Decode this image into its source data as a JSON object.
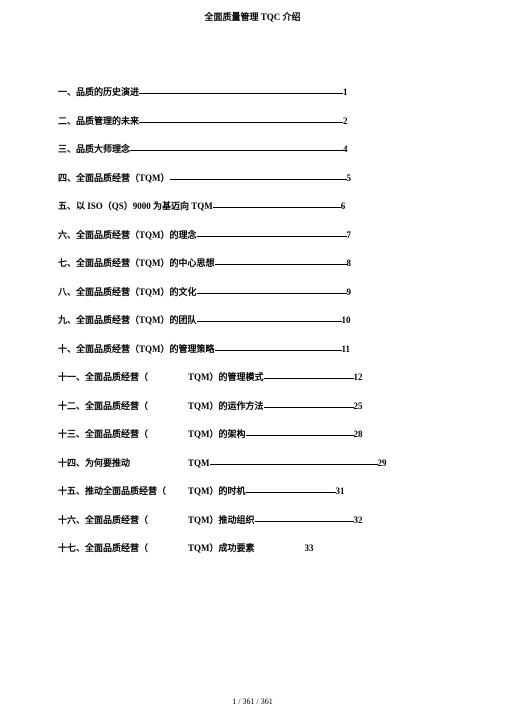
{
  "title": "全面质量管理 TQC 介绍",
  "footer": "1 / 361 / 361",
  "toc": [
    {
      "labelA": "一、品质的历史演进",
      "labelB": "",
      "page": "1",
      "ruleWidth": 204,
      "gapA": 0,
      "gapB": 0,
      "gapC": 0
    },
    {
      "labelA": "二、品质管理的未来",
      "labelB": "",
      "page": "2",
      "ruleWidth": 204,
      "gapA": 0,
      "gapB": 0,
      "gapC": 0
    },
    {
      "labelA": "三、品质大师理念",
      "labelB": "",
      "page": "4",
      "ruleWidth": 213,
      "gapA": 0,
      "gapB": 0,
      "gapC": 0
    },
    {
      "labelA": "四、全面品质经营（TQM）",
      "labelB": "",
      "page": "5",
      "ruleWidth": 177,
      "gapA": 0,
      "gapB": 0,
      "gapC": 0
    },
    {
      "labelA": "五、以 ISO（QS）9000 为基迈向 TQM",
      "labelB": "",
      "page": "6",
      "ruleWidth": 128,
      "gapA": 0,
      "gapB": 0,
      "gapC": 0
    },
    {
      "labelA": "六、全面品质经营（TQM）的理念",
      "labelB": "",
      "page": "7",
      "ruleWidth": 150,
      "gapA": 0,
      "gapB": 0,
      "gapC": 0
    },
    {
      "labelA": "七、全面品质经营（TQM）的中心思想",
      "labelB": "",
      "page": "8",
      "ruleWidth": 132,
      "gapA": 0,
      "gapB": 0,
      "gapC": 0
    },
    {
      "labelA": "八、全面品质经营（TQM）的文化",
      "labelB": "",
      "page": "9",
      "ruleWidth": 150,
      "gapA": 0,
      "gapB": 0,
      "gapC": 0
    },
    {
      "labelA": "九、全面品质经营（TQM）的团队",
      "labelB": "",
      "page": "10",
      "ruleWidth": 145,
      "gapA": 0,
      "gapB": 0,
      "gapC": 0
    },
    {
      "labelA": "十、全面品质经营（TQM）的管理策略",
      "labelB": "",
      "page": "11",
      "ruleWidth": 127,
      "gapA": 0,
      "gapB": 0,
      "gapC": 0
    },
    {
      "labelA": "十一、全面品质经营（",
      "labelB": "TQM）的管理模式",
      "page": "12",
      "ruleWidth": 90,
      "gapA": 40,
      "gapB": 0,
      "gapC": 0
    },
    {
      "labelA": "十二、全面品质经营（",
      "labelB": "TQM）的运作方法",
      "page": "25",
      "ruleWidth": 90,
      "gapA": 40,
      "gapB": 0,
      "gapC": 0
    },
    {
      "labelA": "十三、全面品质经营（",
      "labelB": "TQM）的架构",
      "page": "28",
      "ruleWidth": 108,
      "gapA": 40,
      "gapB": 0,
      "gapC": 0
    },
    {
      "labelA": "十四、为何要推动",
      "labelB": "TQM",
      "page": "29",
      "ruleWidth": 168,
      "gapA": 58,
      "gapB": 0,
      "gapC": 0
    },
    {
      "labelA": "十五、推动全面品质经营（",
      "labelB": "TQM）的时机",
      "page": "31",
      "ruleWidth": 90,
      "gapA": 22,
      "gapB": 0,
      "gapC": 0
    },
    {
      "labelA": "十六、全面品质经营（",
      "labelB": "TQM）推动组织",
      "page": "32",
      "ruleWidth": 99,
      "gapA": 40,
      "gapB": 0,
      "gapC": 0
    },
    {
      "labelA": "十七、全面品质经营（",
      "labelB": "TQM）成功要素",
      "page": "33",
      "ruleWidth": 0,
      "gapA": 40,
      "gapB": 0,
      "gapC": 50
    }
  ]
}
